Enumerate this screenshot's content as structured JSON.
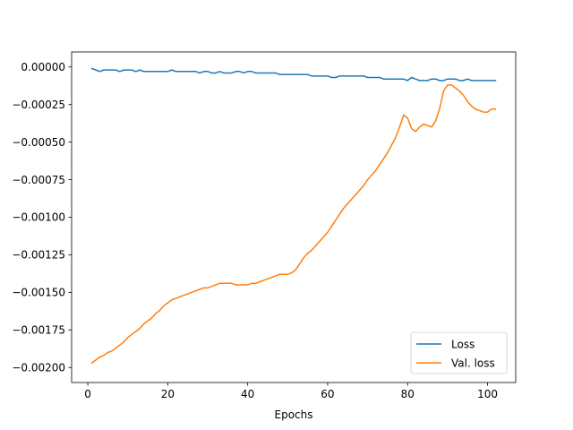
{
  "chart_data": {
    "type": "line",
    "title": "",
    "xlabel": "Epochs",
    "ylabel": "",
    "xlim": [
      -4.05,
      107.05
    ],
    "ylim": [
      -0.0021,
      0.0001
    ],
    "xticks": [
      0,
      20,
      40,
      60,
      80,
      100
    ],
    "xtick_labels": [
      "0",
      "20",
      "40",
      "60",
      "80",
      "100"
    ],
    "yticks": [
      0.0,
      -0.00025,
      -0.0005,
      -0.00075,
      -0.001,
      -0.00125,
      -0.0015,
      -0.00175,
      -0.002
    ],
    "ytick_labels": [
      "0.00000",
      "−0.00025",
      "−0.00050",
      "−0.00075",
      "−0.00100",
      "−0.00125",
      "−0.00150",
      "−0.00175",
      "−0.00200"
    ],
    "grid": false,
    "legend_position": "lower right",
    "series": [
      {
        "name": "Loss",
        "color": "#1f77b4",
        "x": [
          1,
          2,
          3,
          4,
          5,
          6,
          7,
          8,
          9,
          10,
          11,
          12,
          13,
          14,
          15,
          16,
          17,
          18,
          19,
          20,
          21,
          22,
          23,
          24,
          25,
          26,
          27,
          28,
          29,
          30,
          31,
          32,
          33,
          34,
          35,
          36,
          37,
          38,
          39,
          40,
          41,
          42,
          43,
          44,
          45,
          46,
          47,
          48,
          49,
          50,
          51,
          52,
          53,
          54,
          55,
          56,
          57,
          58,
          59,
          60,
          61,
          62,
          63,
          64,
          65,
          66,
          67,
          68,
          69,
          70,
          71,
          72,
          73,
          74,
          75,
          76,
          77,
          78,
          79,
          80,
          81,
          82,
          83,
          84,
          85,
          86,
          87,
          88,
          89,
          90,
          91,
          92,
          93,
          94,
          95,
          96,
          97,
          98,
          99,
          100,
          101,
          102
        ],
        "y": [
          -1e-05,
          -2e-05,
          -3e-05,
          -2e-05,
          -2e-05,
          -2e-05,
          -2e-05,
          -3e-05,
          -2e-05,
          -2e-05,
          -2e-05,
          -3e-05,
          -2e-05,
          -3e-05,
          -3e-05,
          -3e-05,
          -3e-05,
          -3e-05,
          -3e-05,
          -3e-05,
          -2e-05,
          -3e-05,
          -3e-05,
          -3e-05,
          -3e-05,
          -3e-05,
          -3e-05,
          -4e-05,
          -3e-05,
          -3e-05,
          -4e-05,
          -4e-05,
          -3e-05,
          -4e-05,
          -4e-05,
          -4e-05,
          -3e-05,
          -3e-05,
          -4e-05,
          -3e-05,
          -3e-05,
          -4e-05,
          -4e-05,
          -4e-05,
          -4e-05,
          -4e-05,
          -4e-05,
          -5e-05,
          -5e-05,
          -5e-05,
          -5e-05,
          -5e-05,
          -5e-05,
          -5e-05,
          -5e-05,
          -6e-05,
          -6e-05,
          -6e-05,
          -6e-05,
          -6e-05,
          -7e-05,
          -7e-05,
          -6e-05,
          -6e-05,
          -6e-05,
          -6e-05,
          -6e-05,
          -6e-05,
          -6e-05,
          -7e-05,
          -7e-05,
          -7e-05,
          -7e-05,
          -8e-05,
          -8e-05,
          -8e-05,
          -8e-05,
          -8e-05,
          -8e-05,
          -9e-05,
          -7e-05,
          -8e-05,
          -9e-05,
          -9e-05,
          -9e-05,
          -8e-05,
          -8e-05,
          -9e-05,
          -9e-05,
          -8e-05,
          -8e-05,
          -8e-05,
          -9e-05,
          -9e-05,
          -8e-05,
          -9e-05,
          -9e-05,
          -9e-05,
          -9e-05,
          -9e-05,
          -9e-05,
          -9e-05
        ]
      },
      {
        "name": "Val. loss",
        "color": "#ff7f0e",
        "x": [
          1,
          2,
          3,
          4,
          5,
          6,
          7,
          8,
          9,
          10,
          11,
          12,
          13,
          14,
          15,
          16,
          17,
          18,
          19,
          20,
          21,
          22,
          23,
          24,
          25,
          26,
          27,
          28,
          29,
          30,
          31,
          32,
          33,
          34,
          35,
          36,
          37,
          38,
          39,
          40,
          41,
          42,
          43,
          44,
          45,
          46,
          47,
          48,
          49,
          50,
          51,
          52,
          53,
          54,
          55,
          56,
          57,
          58,
          59,
          60,
          61,
          62,
          63,
          64,
          65,
          66,
          67,
          68,
          69,
          70,
          71,
          72,
          73,
          74,
          75,
          76,
          77,
          78,
          79,
          80,
          81,
          82,
          83,
          84,
          85,
          86,
          87,
          88,
          89,
          90,
          91,
          92,
          93,
          94,
          95,
          96,
          97,
          98,
          99,
          100,
          101,
          102
        ],
        "y": [
          -0.00197,
          -0.00195,
          -0.00193,
          -0.00192,
          -0.0019,
          -0.00189,
          -0.00187,
          -0.00185,
          -0.00183,
          -0.0018,
          -0.00178,
          -0.00176,
          -0.00174,
          -0.00171,
          -0.00169,
          -0.00167,
          -0.00164,
          -0.00162,
          -0.00159,
          -0.00157,
          -0.00155,
          -0.00154,
          -0.00153,
          -0.00152,
          -0.00151,
          -0.0015,
          -0.00149,
          -0.00148,
          -0.00147,
          -0.00147,
          -0.00146,
          -0.00145,
          -0.00144,
          -0.00144,
          -0.00144,
          -0.00144,
          -0.00145,
          -0.00145,
          -0.00145,
          -0.00145,
          -0.00144,
          -0.00144,
          -0.00143,
          -0.00142,
          -0.00141,
          -0.0014,
          -0.00139,
          -0.00138,
          -0.00138,
          -0.00138,
          -0.00137,
          -0.00135,
          -0.00131,
          -0.00127,
          -0.00124,
          -0.00122,
          -0.00119,
          -0.00116,
          -0.00113,
          -0.0011,
          -0.00106,
          -0.00102,
          -0.00098,
          -0.00094,
          -0.00091,
          -0.00088,
          -0.00085,
          -0.00082,
          -0.00079,
          -0.00075,
          -0.00072,
          -0.00069,
          -0.00065,
          -0.00061,
          -0.00057,
          -0.00052,
          -0.00047,
          -0.0004,
          -0.00032,
          -0.00034,
          -0.00041,
          -0.00043,
          -0.0004,
          -0.00038,
          -0.00039,
          -0.0004,
          -0.00036,
          -0.00028,
          -0.00016,
          -0.00012,
          -0.00012,
          -0.00014,
          -0.00016,
          -0.00019,
          -0.00023,
          -0.00026,
          -0.00028,
          -0.00029,
          -0.0003,
          -0.0003,
          -0.00028,
          -0.00028
        ]
      }
    ]
  }
}
